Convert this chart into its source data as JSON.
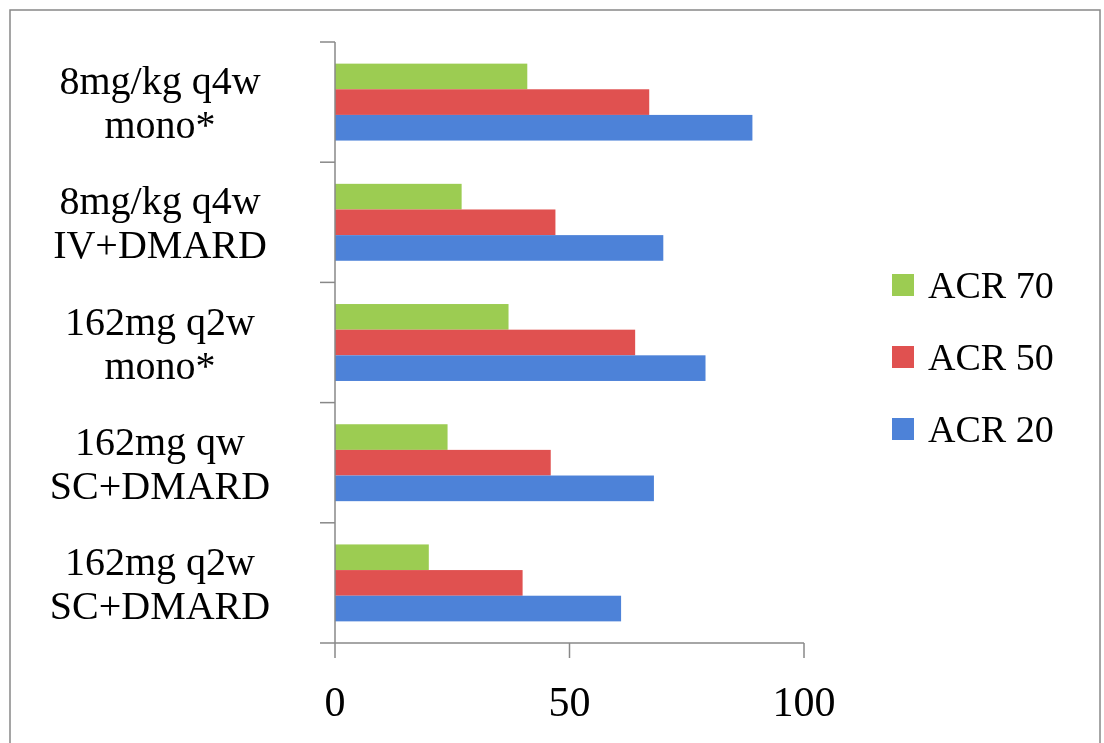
{
  "chart_data": {
    "type": "bar",
    "orientation": "horizontal",
    "categories": [
      "8mg/kg q4w\nmono*",
      "8mg/kg q4w\nIV+DMARD",
      "162mg q2w\nmono*",
      "162mg qw\nSC+DMARD",
      "162mg q2w\nSC+DMARD"
    ],
    "series": [
      {
        "name": "ACR 70",
        "color": "#9ccc52",
        "values": [
          41,
          27,
          37,
          24,
          20
        ]
      },
      {
        "name": "ACR 50",
        "color": "#e05150",
        "values": [
          67,
          47,
          64,
          46,
          40
        ]
      },
      {
        "name": "ACR 20",
        "color": "#4d82d8",
        "values": [
          89,
          70,
          79,
          68,
          61
        ]
      }
    ],
    "xlim": [
      0,
      100
    ],
    "xticks": [
      0,
      50,
      100
    ],
    "grid": false,
    "legend": "right"
  }
}
